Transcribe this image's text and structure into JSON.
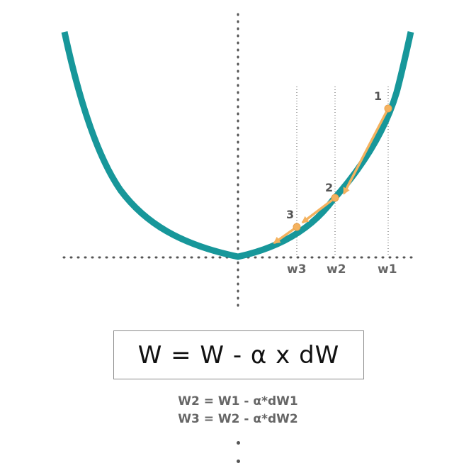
{
  "diagram": {
    "ticks": {
      "w1": "w1",
      "w2": "w2",
      "w3": "w3"
    },
    "points": {
      "p1": "1",
      "p2": "2",
      "p3": "3"
    }
  },
  "formula": {
    "main": "W = W - α x dW"
  },
  "equations": {
    "line1": "W2 = W1 - α*dW1",
    "line2": "W3 = W2 - α*dW2"
  },
  "colors": {
    "curve": "#17979a",
    "steps": "#f4b25f",
    "labels": "#666666"
  },
  "icons": {
    "continuation": "vertical-ellipsis"
  }
}
